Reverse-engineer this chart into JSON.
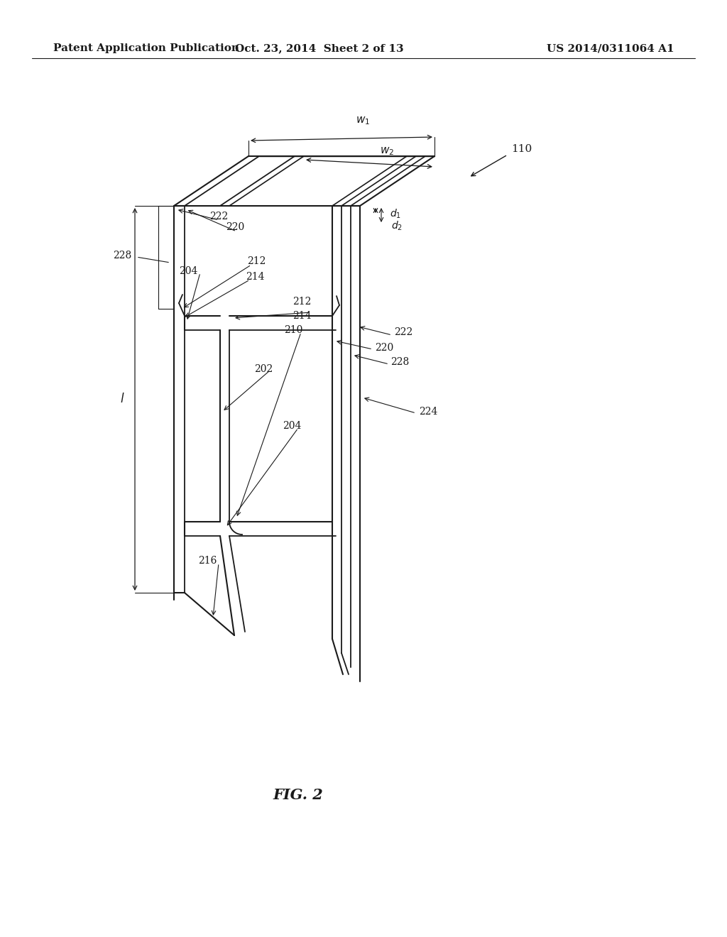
{
  "bg_color": "#ffffff",
  "line_color": "#1a1a1a",
  "text_color": "#1a1a1a",
  "header_left": "Patent Application Publication",
  "header_mid": "Oct. 23, 2014  Sheet 2 of 13",
  "header_right": "US 2014/0311064 A1",
  "fig_label": "FIG. 2"
}
